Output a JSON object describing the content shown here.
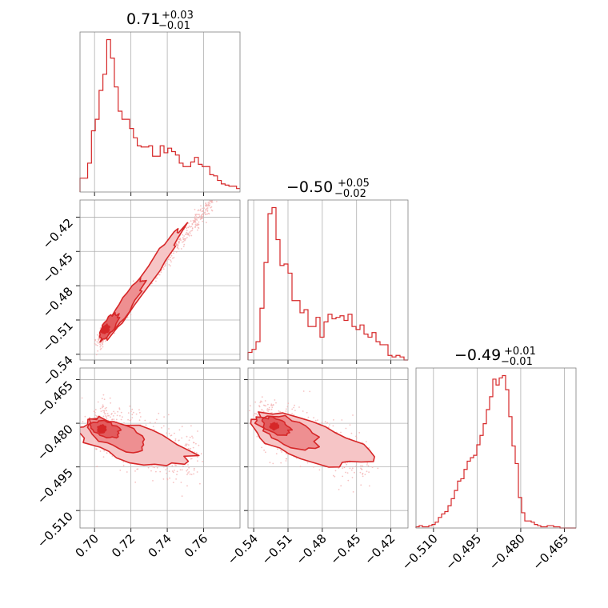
{
  "colors": {
    "primary": "#d62728",
    "fill_light": "#f6c5c6",
    "fill_mid": "#ee8f91",
    "fill_dark": "#e25b5d",
    "scatter": "#f2a9aa",
    "grid": "#b0b0b0",
    "frame": "#808080"
  },
  "chart_data": [
    {
      "type": "histogram",
      "panel": "row1-col1",
      "title": {
        "value": "0.71",
        "plus": "+0.03",
        "minus": "−0.01"
      },
      "xlim": [
        0.692,
        0.78
      ],
      "xticks": [
        "0.70",
        "0.72",
        "0.74",
        "0.76"
      ],
      "xtick_values": [
        0.7,
        0.72,
        0.74,
        0.76
      ],
      "bin_start": 0.692,
      "bin_width": 0.0021,
      "counts": [
        12,
        12,
        25,
        53,
        63,
        88,
        102,
        132,
        116,
        91,
        70,
        63,
        63,
        55,
        47,
        40,
        39,
        39,
        40,
        31,
        31,
        40,
        34,
        38,
        35,
        32,
        25,
        22,
        22,
        26,
        30,
        24,
        22,
        22,
        15,
        14,
        10,
        7,
        6,
        5,
        5,
        3
      ]
    },
    {
      "type": "scatter_contour",
      "panel": "row2-col1",
      "xlim": [
        0.692,
        0.78
      ],
      "ylim": [
        -0.545,
        -0.405
      ],
      "xtick_values": [
        0.7,
        0.72,
        0.74,
        0.76
      ],
      "yticks": [
        "−0.42",
        "−0.45",
        "−0.48",
        "−0.51",
        "−0.54"
      ],
      "ytick_values": [
        -0.42,
        -0.45,
        -0.48,
        -0.51,
        -0.54
      ],
      "relation": {
        "x": [
          0.7,
          0.76
        ],
        "y": [
          -0.54,
          -0.42
        ]
      }
    },
    {
      "type": "histogram",
      "panel": "row2-col2",
      "title": {
        "value": "−0.50",
        "plus": "+0.05",
        "minus": "−0.02"
      },
      "xlim": [
        -0.545,
        -0.405
      ],
      "xtick_values": [
        -0.54,
        -0.51,
        -0.48,
        -0.45,
        -0.42
      ],
      "bin_start": -0.545,
      "bin_width": 0.0035,
      "counts": [
        5,
        7,
        12,
        34,
        64,
        96,
        100,
        79,
        62,
        63,
        57,
        39,
        39,
        31,
        33,
        22,
        22,
        28,
        15,
        25,
        30,
        27,
        28,
        29,
        26,
        30,
        22,
        20,
        23,
        17,
        15,
        18,
        12,
        10,
        10,
        3,
        2,
        3,
        2,
        0
      ]
    },
    {
      "type": "scatter_contour",
      "panel": "row3-col1",
      "xlim": [
        0.692,
        0.78
      ],
      "ylim": [
        -0.516,
        -0.461
      ],
      "xticks": [
        "0.70",
        "0.72",
        "0.74",
        "0.76"
      ],
      "xtick_values": [
        0.7,
        0.72,
        0.74,
        0.76
      ],
      "yticks": [
        "−0.465",
        "−0.480",
        "−0.495",
        "−0.510"
      ],
      "ytick_values": [
        -0.465,
        -0.48,
        -0.495,
        -0.51
      ]
    },
    {
      "type": "scatter_contour",
      "panel": "row3-col2",
      "xlim": [
        -0.545,
        -0.405
      ],
      "ylim": [
        -0.516,
        -0.461
      ],
      "xticks": [
        "−0.54",
        "−0.51",
        "−0.48",
        "−0.45",
        "−0.42"
      ],
      "xtick_values": [
        -0.54,
        -0.51,
        -0.48,
        -0.45,
        -0.42
      ],
      "ytick_values": [
        -0.465,
        -0.48,
        -0.495,
        -0.51
      ]
    },
    {
      "type": "histogram",
      "panel": "row3-col3",
      "title": {
        "value": "−0.49",
        "plus": "+0.01",
        "minus": "−0.01"
      },
      "xlim": [
        -0.516,
        -0.461
      ],
      "xticks": [
        "−0.510",
        "−0.495",
        "−0.480",
        "−0.465"
      ],
      "xtick_values": [
        -0.51,
        -0.495,
        -0.48,
        -0.465
      ],
      "bin_start": -0.516,
      "bin_width": 0.0011,
      "counts": [
        1,
        2,
        1,
        1,
        2,
        3,
        5,
        9,
        12,
        14,
        19,
        25,
        32,
        40,
        42,
        50,
        57,
        60,
        62,
        71,
        79,
        89,
        101,
        112,
        127,
        122,
        128,
        130,
        118,
        95,
        70,
        55,
        26,
        13,
        6,
        6,
        5,
        3,
        2,
        1,
        1,
        2,
        2,
        1,
        1,
        0,
        0,
        0,
        0,
        0
      ]
    }
  ]
}
